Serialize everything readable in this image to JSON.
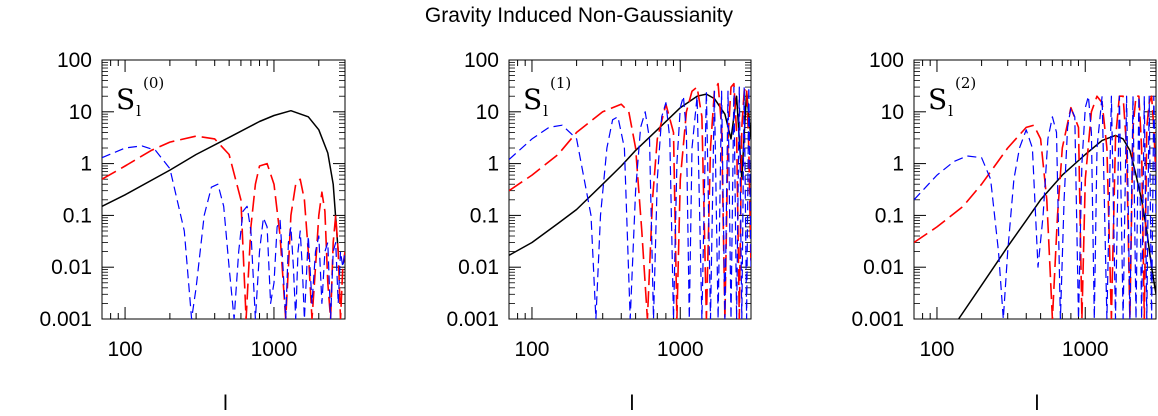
{
  "figure_title": "Gravity Induced Non-Gaussianity",
  "chart_data": [
    {
      "type": "line",
      "panel_label": {
        "base": "S",
        "subscript": "l",
        "superscript": "(0)"
      },
      "xlabel": "l",
      "ylabel": "",
      "xscale": "log",
      "yscale": "log",
      "xlim": [
        70,
        3000
      ],
      "ylim": [
        0.001,
        100
      ],
      "xtick_labels": [
        "100",
        "1000"
      ],
      "ytick_labels": [
        "0.001",
        "0.01",
        "0.1",
        "1",
        "10",
        "100"
      ],
      "series": [
        {
          "style": "solid",
          "color": "#000000",
          "x": [
            70,
            100,
            200,
            300,
            500,
            800,
            1000,
            1300,
            1700,
            2000,
            2300,
            2500,
            2700
          ],
          "y": [
            0.15,
            0.25,
            0.75,
            1.5,
            3.2,
            6.5,
            8.5,
            10.5,
            8.0,
            4.5,
            1.6,
            0.4,
            0.02
          ]
        },
        {
          "style": "long-dash",
          "color": "#ff0000",
          "x": [
            70,
            100,
            150,
            200,
            300,
            400,
            500,
            600,
            650,
            700,
            750,
            800,
            900,
            1000,
            1100,
            1200,
            1250,
            1300,
            1400,
            1500,
            1600,
            1700,
            1800,
            1900,
            2000,
            2100,
            2200,
            2300,
            2400,
            2500,
            2600,
            2700,
            2800,
            2900,
            3000
          ],
          "y": [
            0.5,
            0.9,
            1.8,
            2.6,
            3.4,
            3.0,
            1.5,
            0.2,
            0.001,
            0.06,
            0.4,
            0.9,
            1.0,
            0.4,
            0.04,
            0.001,
            0.01,
            0.1,
            0.4,
            0.5,
            0.2,
            0.02,
            0.001,
            0.01,
            0.1,
            0.28,
            0.12,
            0.005,
            0.001,
            0.03,
            0.1,
            0.02,
            0.001,
            0.01,
            0.02
          ]
        },
        {
          "style": "short-dash",
          "color": "#0000ff",
          "x": [
            70,
            100,
            130,
            160,
            200,
            250,
            280,
            300,
            340,
            380,
            420,
            460,
            500,
            540,
            580,
            620,
            660,
            700,
            750,
            800,
            850,
            900,
            950,
            1000,
            1050,
            1100,
            1150,
            1200,
            1250,
            1300,
            1350,
            1400,
            1450,
            1500,
            1550,
            1600,
            1700,
            1800,
            1900,
            2000,
            2100,
            2200,
            2300,
            2400,
            2500,
            2600,
            2700,
            2800,
            2900,
            3000
          ],
          "y": [
            1.3,
            2.0,
            2.2,
            1.8,
            0.8,
            0.05,
            0.001,
            0.004,
            0.1,
            0.35,
            0.4,
            0.15,
            0.01,
            0.001,
            0.02,
            0.12,
            0.15,
            0.05,
            0.001,
            0.02,
            0.09,
            0.06,
            0.002,
            0.005,
            0.06,
            0.08,
            0.01,
            0.001,
            0.03,
            0.06,
            0.01,
            0.001,
            0.02,
            0.05,
            0.01,
            0.001,
            0.04,
            0.002,
            0.02,
            0.04,
            0.002,
            0.02,
            0.03,
            0.001,
            0.02,
            0.03,
            0.002,
            0.02,
            0.01,
            0.02
          ]
        }
      ]
    },
    {
      "type": "line",
      "panel_label": {
        "base": "S",
        "subscript": "l",
        "superscript": "(1)"
      },
      "xlabel": "l",
      "ylabel": "",
      "xscale": "log",
      "yscale": "log",
      "xlim": [
        70,
        3000
      ],
      "ylim": [
        0.001,
        100
      ],
      "xtick_labels": [
        "100",
        "1000"
      ],
      "ytick_labels": [
        "0.001",
        "0.01",
        "0.1",
        "1",
        "10",
        "100"
      ],
      "series": [
        {
          "style": "solid",
          "color": "#000000",
          "x": [
            70,
            100,
            150,
            200,
            300,
            400,
            500,
            700,
            1000,
            1300,
            1500,
            1700,
            2000,
            2200,
            2400,
            2600,
            2800,
            3000
          ],
          "y": [
            0.017,
            0.03,
            0.07,
            0.13,
            0.4,
            0.9,
            1.8,
            4.5,
            12,
            20,
            22,
            18,
            9,
            3,
            20,
            0.5,
            25,
            3
          ]
        },
        {
          "style": "long-dash",
          "color": "#ff0000",
          "x": [
            70,
            100,
            150,
            200,
            300,
            400,
            450,
            500,
            550,
            600,
            650,
            700,
            800,
            900,
            950,
            1000,
            1100,
            1200,
            1300,
            1400,
            1500,
            1600,
            1700,
            1800,
            1900,
            2000,
            2100,
            2200,
            2300,
            2400,
            2500,
            2600,
            2700,
            2800,
            2900,
            3000
          ],
          "y": [
            0.3,
            0.6,
            1.5,
            4,
            10,
            14,
            10,
            2,
            0.05,
            0.001,
            0.2,
            3,
            14,
            4,
            0.001,
            0.5,
            10,
            25,
            30,
            8,
            0.001,
            2,
            25,
            35,
            5,
            0.001,
            3,
            30,
            35,
            4,
            0.001,
            5,
            25,
            30,
            2,
            0.01
          ]
        },
        {
          "style": "short-dash",
          "color": "#0000ff",
          "x": [
            70,
            100,
            130,
            160,
            200,
            250,
            270,
            290,
            320,
            350,
            380,
            420,
            460,
            500,
            540,
            580,
            620,
            660,
            700,
            750,
            800,
            850,
            900,
            950,
            1000,
            1050,
            1100,
            1150,
            1200,
            1300,
            1400,
            1500,
            1600,
            1700,
            1800,
            1900,
            2000,
            2100,
            2200,
            2300,
            2400,
            2500,
            2600,
            2700,
            2800,
            2900,
            3000
          ],
          "y": [
            1.2,
            3,
            5,
            5.5,
            3,
            0.1,
            0.001,
            0.1,
            2,
            7,
            8,
            2,
            0.001,
            0.3,
            5,
            10,
            3,
            0.001,
            0.5,
            8,
            15,
            3,
            0.001,
            1,
            12,
            20,
            4,
            0.001,
            2,
            20,
            0.001,
            25,
            0.001,
            25,
            0.001,
            25,
            0.001,
            25,
            0.001,
            30,
            0.001,
            30,
            0.001,
            30,
            0.001,
            30,
            0.01
          ]
        }
      ]
    },
    {
      "type": "line",
      "panel_label": {
        "base": "S",
        "subscript": "l",
        "superscript": "(2)"
      },
      "xlabel": "l",
      "ylabel": "",
      "xscale": "log",
      "yscale": "log",
      "xlim": [
        70,
        3000
      ],
      "ylim": [
        0.001,
        100
      ],
      "xtick_labels": [
        "100",
        "1000"
      ],
      "ytick_labels": [
        "0.001",
        "0.01",
        "0.1",
        "1",
        "10",
        "100"
      ],
      "series": [
        {
          "style": "solid",
          "color": "#000000",
          "x": [
            140,
            200,
            300,
            400,
            500,
            700,
            1000,
            1300,
            1600,
            1800,
            2000,
            2200,
            2400,
            2600,
            2800,
            3000
          ],
          "y": [
            0.001,
            0.0045,
            0.025,
            0.08,
            0.2,
            0.6,
            1.5,
            2.8,
            3.5,
            3.0,
            1.8,
            0.6,
            0.2,
            0.05,
            0.01,
            0.003
          ]
        },
        {
          "style": "long-dash",
          "color": "#ff0000",
          "x": [
            70,
            100,
            150,
            200,
            300,
            400,
            450,
            500,
            550,
            600,
            650,
            700,
            800,
            900,
            950,
            1000,
            1100,
            1200,
            1300,
            1400,
            1500,
            1600,
            1700,
            1800,
            1900,
            2000,
            2100,
            2200,
            2300,
            2400,
            2500,
            2600,
            2700,
            2800,
            2900,
            3000
          ],
          "y": [
            0.03,
            0.06,
            0.15,
            0.4,
            2,
            5,
            5.5,
            3,
            0.2,
            0.001,
            0.1,
            2,
            12,
            5,
            0.001,
            0.5,
            10,
            20,
            15,
            2,
            0.001,
            3,
            20,
            20,
            2,
            0.001,
            5,
            20,
            20,
            2,
            0.001,
            5,
            15,
            20,
            5,
            0.5
          ]
        },
        {
          "style": "short-dash",
          "color": "#0000ff",
          "x": [
            70,
            100,
            130,
            160,
            200,
            230,
            260,
            280,
            300,
            330,
            360,
            400,
            440,
            480,
            520,
            560,
            600,
            640,
            680,
            720,
            760,
            800,
            850,
            900,
            950,
            1000,
            1050,
            1100,
            1150,
            1200,
            1300,
            1400,
            1500,
            1600,
            1700,
            1800,
            1900,
            2000,
            2100,
            2200,
            2300,
            2400,
            2500,
            2600,
            2700,
            2800,
            2900,
            3000
          ],
          "y": [
            0.2,
            0.6,
            1.1,
            1.4,
            1.3,
            0.5,
            0.02,
            0.001,
            0.02,
            0.5,
            2,
            4.5,
            2,
            0.01,
            0.1,
            3,
            8,
            4,
            0.001,
            0.2,
            5,
            12,
            8,
            0.001,
            1,
            12,
            20,
            4,
            0.001,
            2,
            20,
            0.001,
            20,
            0.001,
            20,
            0.001,
            20,
            0.001,
            20,
            0.001,
            20,
            0.001,
            20,
            0.001,
            20,
            0.001,
            20,
            0.1
          ]
        }
      ]
    }
  ]
}
